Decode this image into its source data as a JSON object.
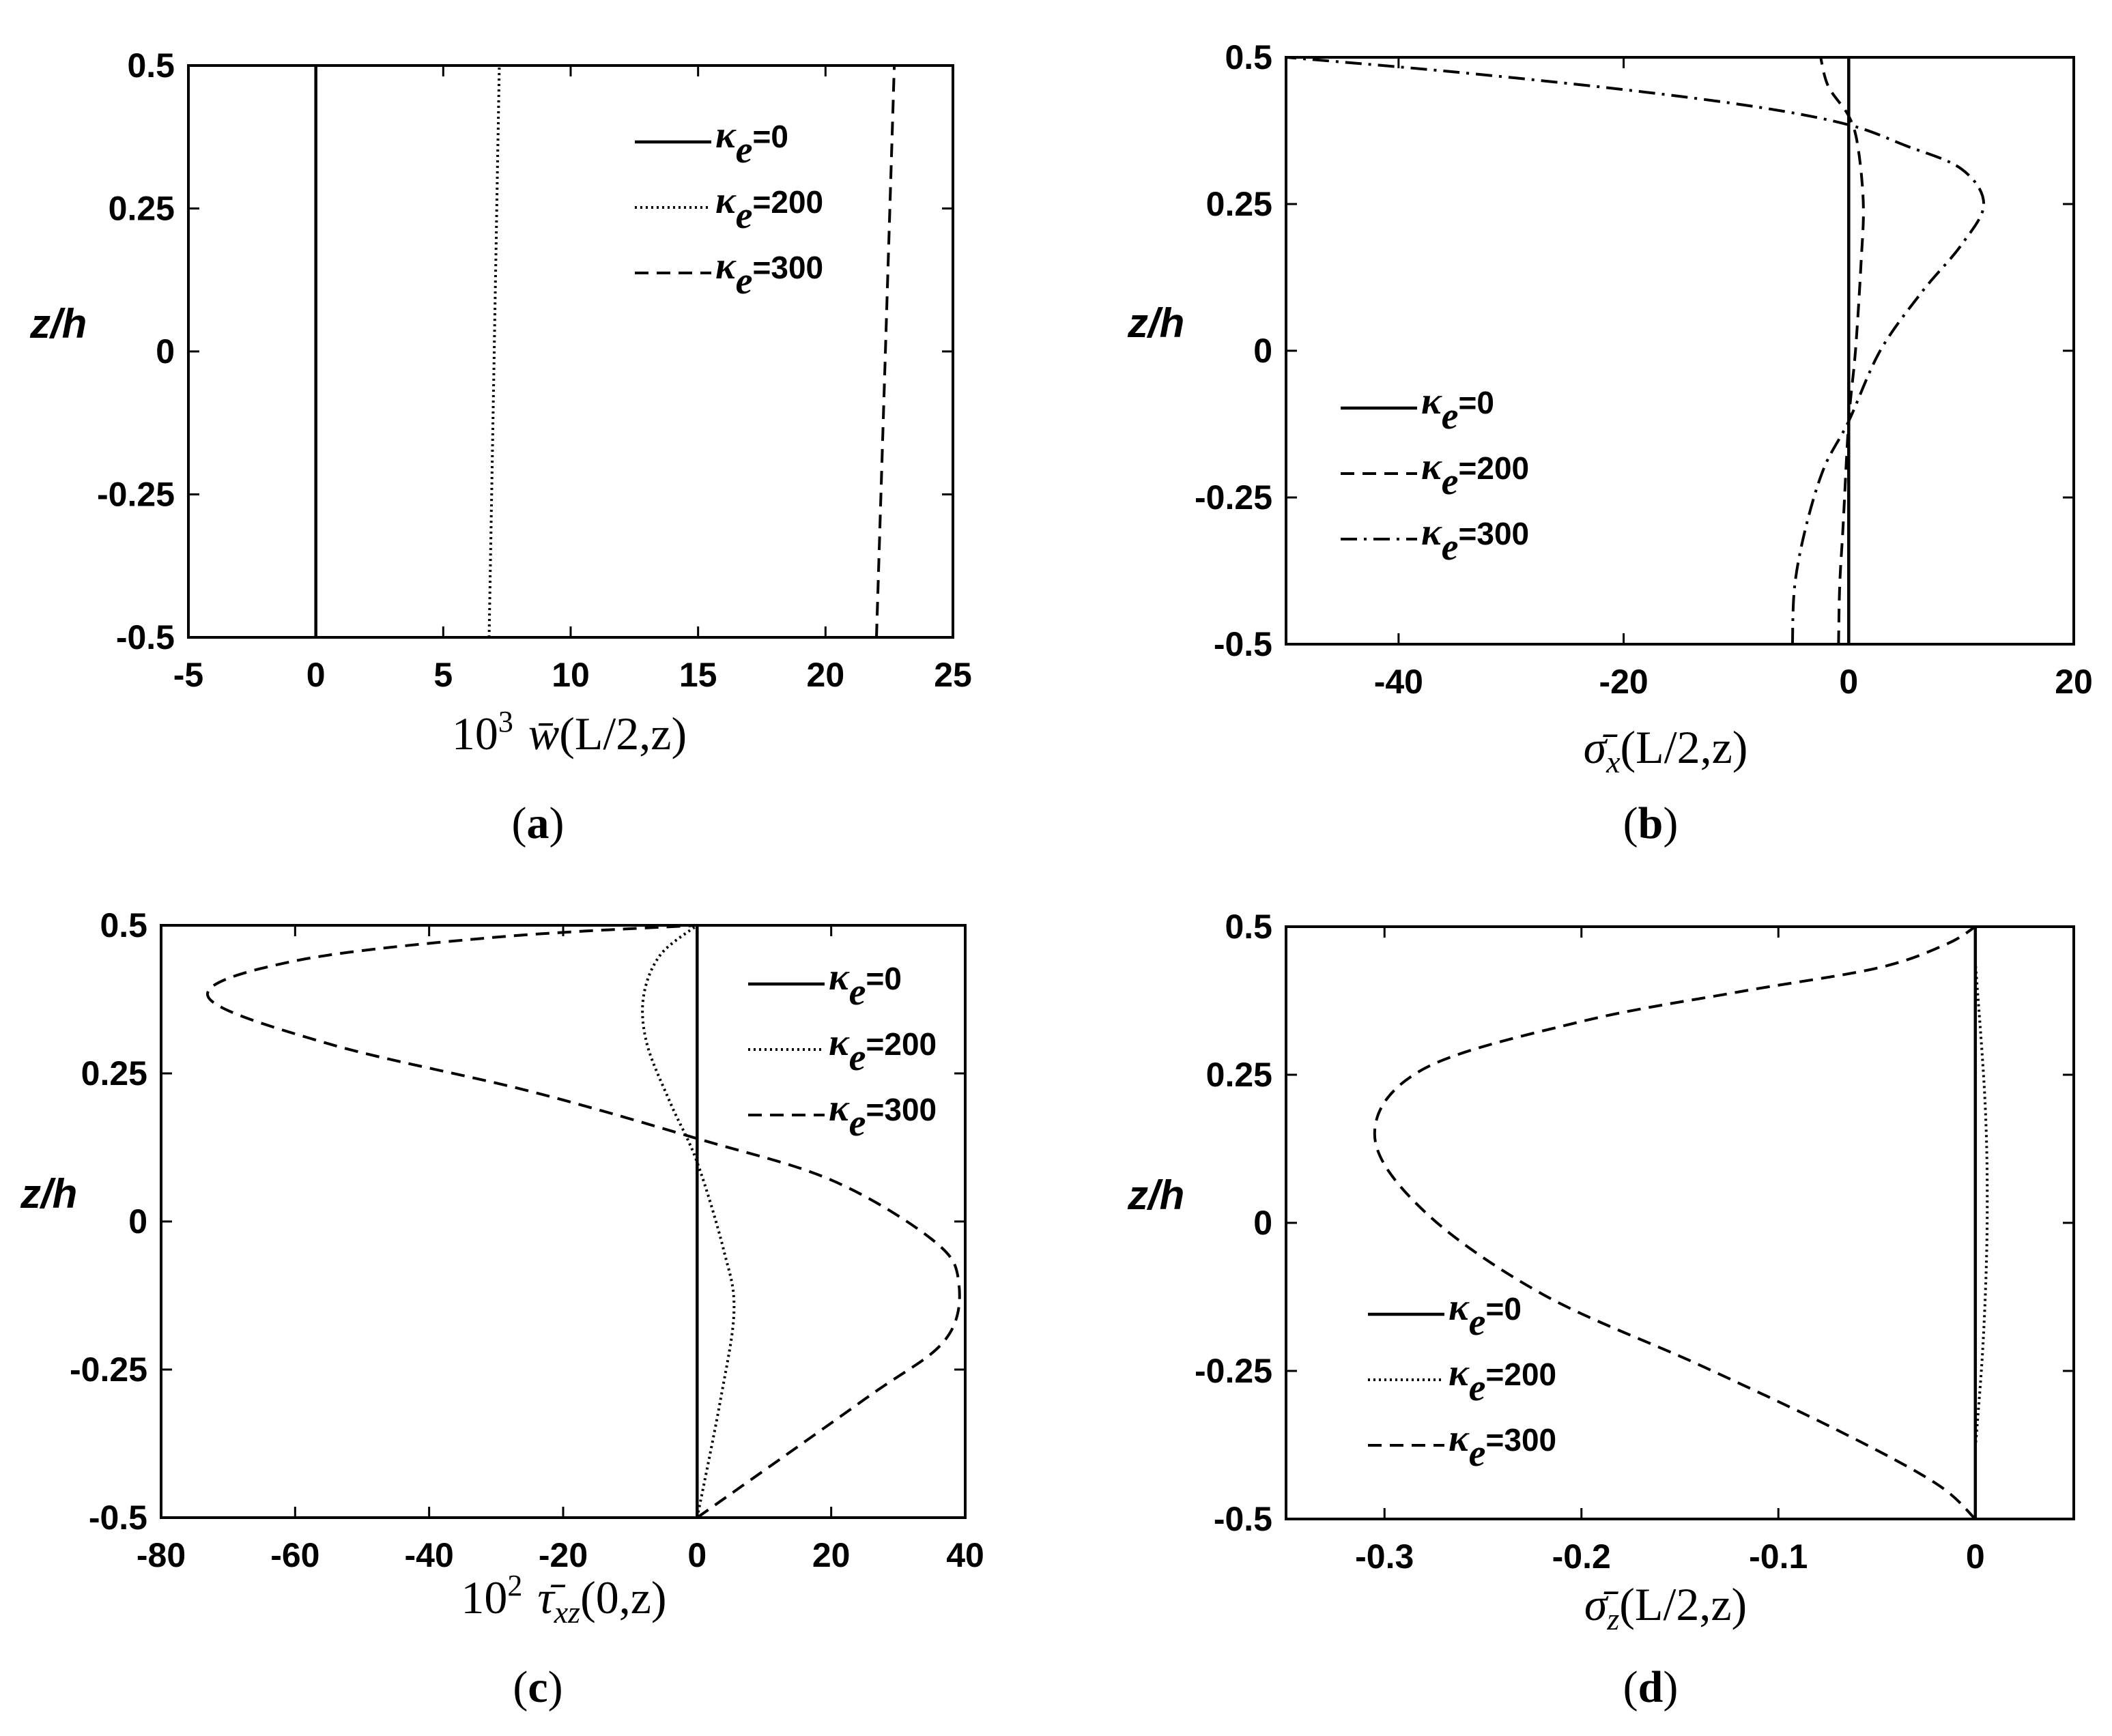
{
  "chart_data": [
    {
      "type": "line",
      "panel_label": "a",
      "xlabel": "10³ w̄(L/2,z)",
      "ylabel": "z/h",
      "xlim": [
        -5,
        25
      ],
      "ylim": [
        -0.5,
        0.5
      ],
      "xticks": [
        "-5",
        "0",
        "5",
        "10",
        "15",
        "20",
        "25"
      ],
      "yticks": [
        "-0.5",
        "-0.25",
        "0",
        "0.25",
        "0.5"
      ],
      "legend_position": "top-right",
      "series": [
        {
          "name": "κe=0",
          "style": "solid",
          "points": [
            [
              0.0,
              -0.5
            ],
            [
              0.0,
              0.0
            ],
            [
              0.0,
              0.5
            ]
          ]
        },
        {
          "name": "κe=200",
          "style": "dotted",
          "points": [
            [
              6.8,
              -0.5
            ],
            [
              7.0,
              0.0
            ],
            [
              7.2,
              0.5
            ]
          ]
        },
        {
          "name": "κe=300",
          "style": "dashed",
          "points": [
            [
              22.0,
              -0.5
            ],
            [
              22.35,
              0.0
            ],
            [
              22.7,
              0.5
            ]
          ]
        }
      ]
    },
    {
      "type": "line",
      "panel_label": "b",
      "xlabel": "σ̄x(L/2,z)",
      "ylabel": "z/h",
      "xlim": [
        -50,
        20
      ],
      "ylim": [
        -0.5,
        0.5
      ],
      "xticks": [
        "-40",
        "-20",
        "0",
        "20"
      ],
      "yticks": [
        "-0.5",
        "-0.25",
        "0",
        "0.25",
        "0.5"
      ],
      "legend_position": "bottom-left",
      "series": [
        {
          "name": "κe=0",
          "style": "solid",
          "points": [
            [
              0.0,
              -0.5
            ],
            [
              0.0,
              0.5
            ]
          ]
        },
        {
          "name": "κe=200",
          "style": "dashed",
          "points": [
            [
              -0.9,
              -0.5
            ],
            [
              -0.8,
              -0.4
            ],
            [
              -0.5,
              -0.3
            ],
            [
              0.0,
              -0.12
            ],
            [
              0.6,
              0.0
            ],
            [
              1.1,
              0.15
            ],
            [
              1.3,
              0.25
            ],
            [
              0.8,
              0.35
            ],
            [
              0.0,
              0.4
            ],
            [
              -1.8,
              0.45
            ],
            [
              -2.5,
              0.5
            ]
          ]
        },
        {
          "name": "κe=300",
          "style": "dashdot",
          "points": [
            [
              -5.0,
              -0.5
            ],
            [
              -4.8,
              -0.4
            ],
            [
              -3.8,
              -0.3
            ],
            [
              -2.2,
              -0.2
            ],
            [
              0.0,
              -0.12
            ],
            [
              2.8,
              0.0
            ],
            [
              6.5,
              0.1
            ],
            [
              10.0,
              0.18
            ],
            [
              12.0,
              0.25
            ],
            [
              10.0,
              0.31
            ],
            [
              5.0,
              0.35
            ],
            [
              0.0,
              0.385
            ],
            [
              -8.0,
              0.415
            ],
            [
              -20.0,
              0.445
            ],
            [
              -35.0,
              0.475
            ],
            [
              -50.0,
              0.5
            ]
          ]
        }
      ]
    },
    {
      "type": "line",
      "panel_label": "c",
      "xlabel": "10² τ̄xz(0,z)",
      "ylabel": "z/h",
      "xlim": [
        -80,
        40
      ],
      "ylim": [
        -0.5,
        0.5
      ],
      "xticks": [
        "-80",
        "-60",
        "-40",
        "-20",
        "0",
        "20",
        "40"
      ],
      "yticks": [
        "-0.5",
        "-0.25",
        "0",
        "0.25",
        "0.5"
      ],
      "legend_position": "top-right",
      "series": [
        {
          "name": "κe=0",
          "style": "solid",
          "points": [
            [
              0.0,
              -0.5
            ],
            [
              0.0,
              0.5
            ]
          ]
        },
        {
          "name": "κe=200",
          "style": "dotted",
          "points": [
            [
              0.0,
              -0.5
            ],
            [
              3.5,
              -0.3
            ],
            [
              5.5,
              -0.15
            ],
            [
              4.0,
              -0.05
            ],
            [
              0.0,
              0.1
            ],
            [
              -4.0,
              0.2
            ],
            [
              -7.5,
              0.3
            ],
            [
              -8.0,
              0.38
            ],
            [
              -5.5,
              0.45
            ],
            [
              0.0,
              0.5
            ]
          ]
        },
        {
          "name": "κe=300",
          "style": "dashed",
          "points": [
            [
              0.0,
              -0.5
            ],
            [
              25.0,
              -0.3
            ],
            [
              37.0,
              -0.2
            ],
            [
              39.0,
              -0.1
            ],
            [
              35.0,
              -0.03
            ],
            [
              20.0,
              0.07
            ],
            [
              0.0,
              0.14
            ],
            [
              -25.0,
              0.22
            ],
            [
              -55.0,
              0.3
            ],
            [
              -73.0,
              0.38
            ],
            [
              -60.0,
              0.44
            ],
            [
              -30.0,
              0.48
            ],
            [
              0.0,
              0.5
            ]
          ]
        }
      ]
    },
    {
      "type": "line",
      "panel_label": "d",
      "xlabel": "σ̄z(L/2,z)",
      "ylabel": "z/h",
      "xlim": [
        -0.35,
        0.05
      ],
      "ylim": [
        -0.5,
        0.5
      ],
      "xticks": [
        "-0.3",
        "-0.2",
        "-0.1",
        "0"
      ],
      "yticks": [
        "-0.5",
        "-0.25",
        "0",
        "0.25",
        "0.5"
      ],
      "legend_position": "bottom-left",
      "series": [
        {
          "name": "κe=0",
          "style": "solid",
          "points": [
            [
              0.0,
              -0.5
            ],
            [
              0.0,
              0.5
            ]
          ]
        },
        {
          "name": "κe=200",
          "style": "dotted",
          "points": [
            [
              0.0,
              -0.38
            ],
            [
              0.004,
              -0.2
            ],
            [
              0.006,
              0.0
            ],
            [
              0.005,
              0.2
            ],
            [
              0.0,
              0.44
            ]
          ]
        },
        {
          "name": "κe=300",
          "style": "dashed",
          "points": [
            [
              0.0,
              -0.5
            ],
            [
              -0.02,
              -0.44
            ],
            [
              -0.07,
              -0.35
            ],
            [
              -0.14,
              -0.24
            ],
            [
              -0.22,
              -0.12
            ],
            [
              -0.28,
              0.02
            ],
            [
              -0.305,
              0.15
            ],
            [
              -0.28,
              0.26
            ],
            [
              -0.2,
              0.34
            ],
            [
              -0.12,
              0.39
            ],
            [
              -0.05,
              0.43
            ],
            [
              -0.015,
              0.47
            ],
            [
              0.0,
              0.5
            ]
          ]
        }
      ]
    }
  ],
  "legend_labels": {
    "kappa": "κ",
    "sub": "e",
    "values": [
      "=0",
      "=200",
      "=300"
    ]
  },
  "axis_text": {
    "a": {
      "pre": "10",
      "sup": "3",
      "sym": "w̄",
      "arg": "(L/2,z)"
    },
    "b": {
      "sym": "σ̄",
      "sub": "x",
      "arg": "(L/2,z)"
    },
    "c": {
      "pre": "10",
      "sup": "2",
      "sym": "τ̄",
      "sub": "xz",
      "arg": "(0,z)"
    },
    "d": {
      "sym": "σ̄",
      "sub": "z",
      "arg": "(L/2,z)"
    }
  },
  "panels": {
    "a": {
      "open": "(",
      "letter": "a",
      "close": ")"
    },
    "b": {
      "open": "(",
      "letter": "b",
      "close": ")"
    },
    "c": {
      "open": "(",
      "letter": "c",
      "close": ")"
    },
    "d": {
      "open": "(",
      "letter": "d",
      "close": ")"
    }
  }
}
